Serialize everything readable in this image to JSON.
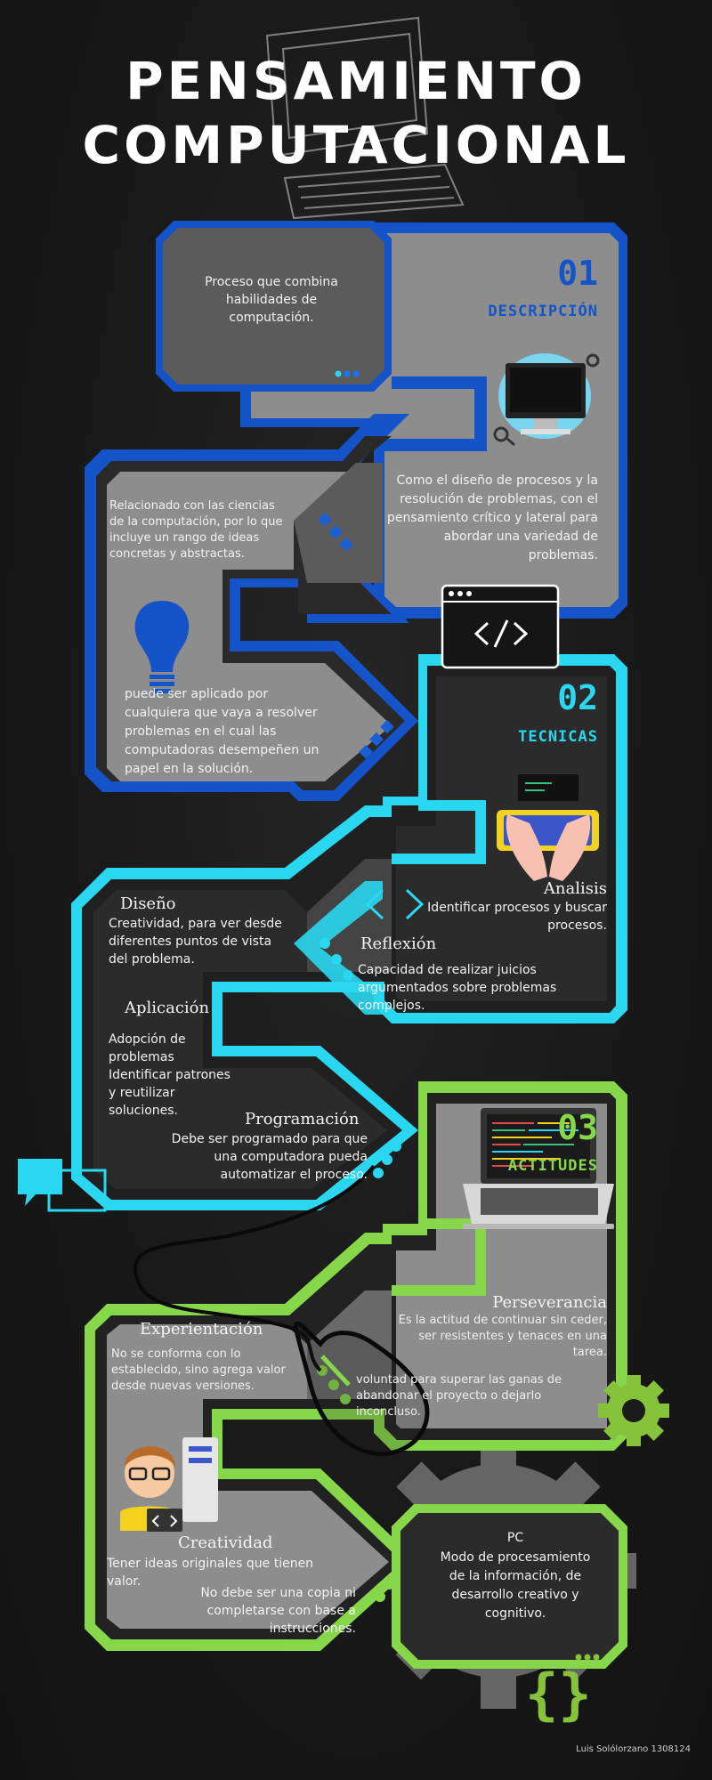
{
  "title": {
    "line1": "PENSAMIENTO",
    "line2": "COMPUTACIONAL"
  },
  "colors": {
    "blue": "#1554c8",
    "cyan": "#2ad7f0",
    "green": "#86d84a",
    "gray_panel": "#8d8d8d",
    "dark_panel": "#2b2b2b",
    "inner_dark": "#3d3d3d"
  },
  "s1": {
    "intro": "Proceso que combina habilidades de computación.",
    "number": "01",
    "label": "DESCRIPCIÓN",
    "right_text": "Como el diseño de procesos y la resolución de problemas, con el pensamiento crítico y lateral para abordar una variedad de problemas.",
    "left_text": "Relacionado con las ciencias de la computación, por lo que incluye un rango de ideas concretas y abstractas.",
    "applied_text": "puede ser aplicado por cualquiera que vaya a resolver problemas en el cual las computadoras desempeñen un papel en la solución."
  },
  "s2": {
    "number": "02",
    "label": "TECNICAS",
    "analisis_head": "Analisis",
    "analisis_text": "Identificar procesos y buscar procesos.",
    "diseno_head": "Diseño",
    "diseno_text": "Creatividad, para ver desde diferentes puntos de vista del problema.",
    "reflexion_head": "Reflexión",
    "reflexion_text": "Capacidad de realizar juicios argumentados sobre problemas complejos.",
    "aplicacion_head": "Aplicación",
    "aplicacion_text": "Adopción de problemas Identificar patrones y reutilizar soluciones.",
    "programacion_head": "Programación",
    "programacion_text": "Debe ser programado para que una computadora pueda automatizar el proceso."
  },
  "s3": {
    "number": "03",
    "label": "ACTITUDES",
    "perseverancia_head": "Perseverancia",
    "perseverancia_text1": "Es la actitud de continuar sin ceder, ser resistentes y tenaces en una tarea.",
    "perseverancia_text2": "voluntad para superar las ganas de abandonar el proyecto o dejarlo inconcluso.",
    "experientacion_head": "Experientación",
    "experientacion_text": "No se conforma con lo establecido, sino agrega valor desde nuevas versiones.",
    "creatividad_head": "Creatividad",
    "creatividad_text1": "Tener ideas originales que tienen valor.",
    "creatividad_text2": "No debe ser una copia ni completarse con base a instrucciones.",
    "pc_head": "PC",
    "pc_text": "Modo de procesamiento de la información, de desarrollo creativo y cognitivo."
  },
  "author": "Luis Solólorzano 1308124",
  "icons": [
    "monitor-icon",
    "code-window-icon",
    "lightbulb-icon",
    "keyboard-hands-icon",
    "angle-brackets-icon",
    "laptop-icon",
    "chat-bubbles-icon",
    "mouse-icon",
    "gear-icon",
    "programmer-icon",
    "curly-braces-icon"
  ]
}
